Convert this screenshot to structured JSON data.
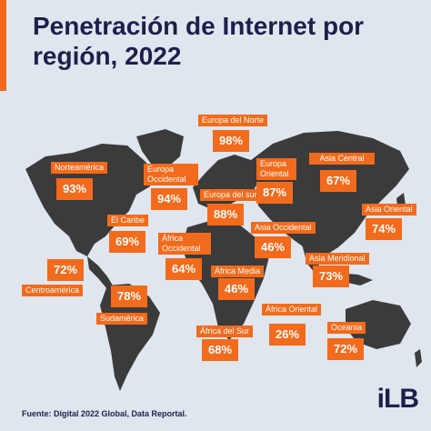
{
  "title": "Penetración de Internet por región, 2022",
  "source": "Fuente: Digital 2022 Global, Data Reportal.",
  "logo": "iLB",
  "colors": {
    "accent": "#f26a1b",
    "land": "#3b3b3b",
    "title": "#1e1f4b",
    "background": "#dfe6ee"
  },
  "regions": [
    {
      "label": "Europa del Norte",
      "value": "98%"
    },
    {
      "label": "Norteamérica",
      "value": "93%"
    },
    {
      "label": "Europa Occidental",
      "value": "94%"
    },
    {
      "label": "Europa Oriental",
      "value": "87%"
    },
    {
      "label": "Asia Central",
      "value": "67%"
    },
    {
      "label": "Europa del sur",
      "value": "88%"
    },
    {
      "label": "El Caribe",
      "value": "69%"
    },
    {
      "label": "Asia Occidental",
      "value": "46%"
    },
    {
      "label": "Asia Oriental",
      "value": "74%"
    },
    {
      "label": "África Occidental",
      "value": "64%"
    },
    {
      "label": "Asia Meridional",
      "value": "73%"
    },
    {
      "label": "Centroamérica",
      "value": "72%"
    },
    {
      "label": "África Media",
      "value": "46%"
    },
    {
      "label": "Sudamérica",
      "value": "78%"
    },
    {
      "label": "África Oriental",
      "value": "26%"
    },
    {
      "label": "África del Sur",
      "value": "68%"
    },
    {
      "label": "Oceanía",
      "value": "72%"
    }
  ]
}
